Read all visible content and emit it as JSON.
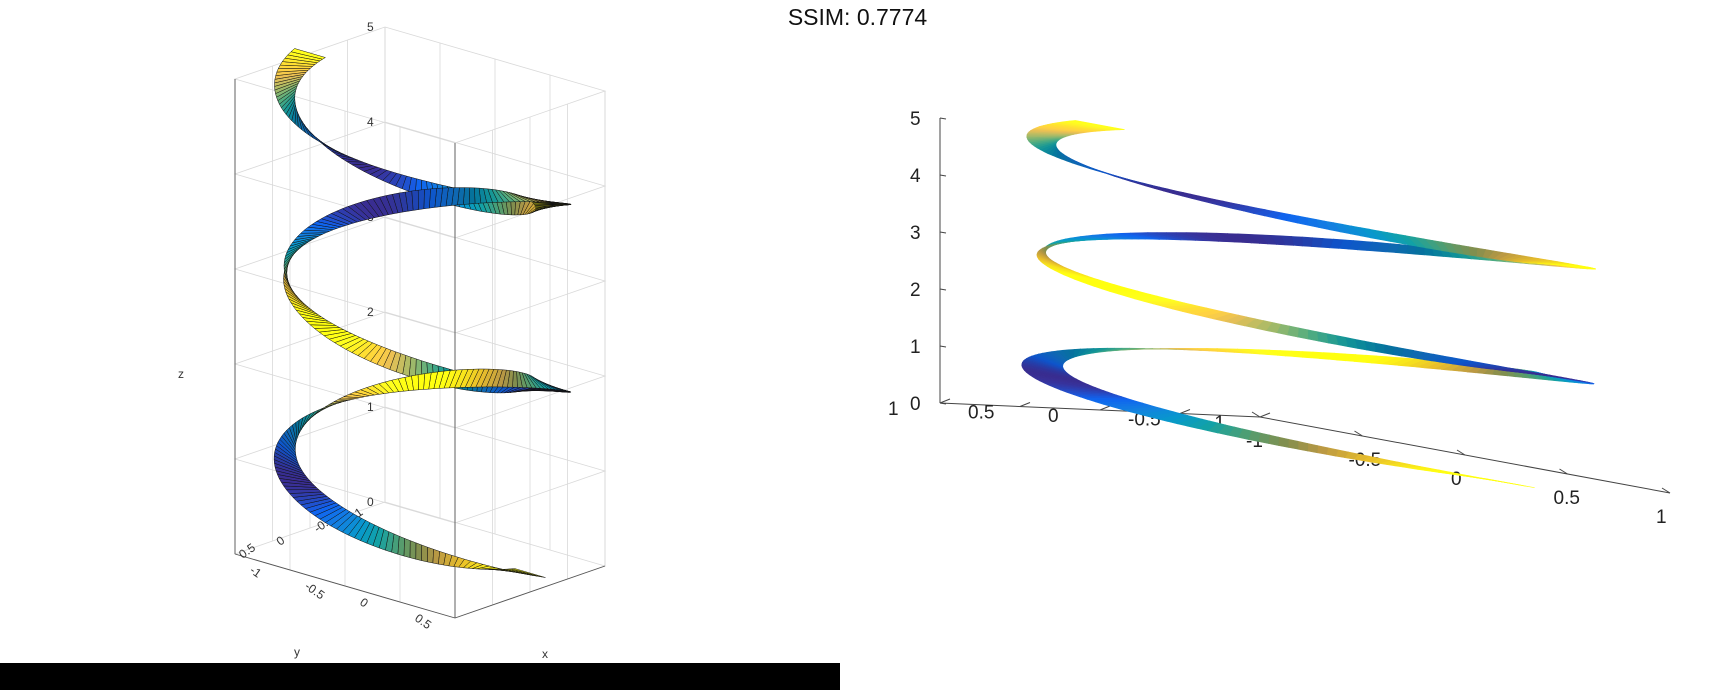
{
  "title": "SSIM: 0.7774",
  "chart_data": [
    {
      "type": "surface",
      "panel": "left",
      "description_axes": {
        "xlabel": "x",
        "ylabel": "y",
        "zlabel": "z"
      },
      "xlim": [
        -1,
        1
      ],
      "ylim": [
        -1,
        1
      ],
      "zlim": [
        0,
        5
      ],
      "z_ticks": [
        "0",
        "1",
        "2",
        "3",
        "4",
        "5"
      ],
      "y_ticks": [
        "-1",
        "-0.5",
        "0",
        "0.5"
      ],
      "x_ticks": [
        "-1",
        "-0.5",
        "0",
        "0.5"
      ],
      "grid": true,
      "edges": "black mesh lines visible",
      "colormap": "parula",
      "shape": "twisted ribbon helix, 2.5 turns, z from 0.2 to 5"
    },
    {
      "type": "surface",
      "panel": "right",
      "xlim": [
        -1,
        1
      ],
      "ylim": [
        -1,
        1
      ],
      "zlim": [
        0,
        5
      ],
      "z_ticks": [
        "0",
        "1",
        "2",
        "3",
        "4",
        "5"
      ],
      "y_ticks": [
        "1",
        "0.5",
        "0",
        "-0.5",
        "-1"
      ],
      "x_ticks": [
        "-1",
        "-0.5",
        "0",
        "0.5",
        "1"
      ],
      "grid": false,
      "edges": "none, interpolated shading",
      "colormap": "parula",
      "shape": "twisted ribbon helix, 2.5 turns, z from 0 to 5"
    }
  ],
  "colors": {
    "parula_dark": "#352a87",
    "parula_blue": "#2c7ad6",
    "parula_teal": "#1aa5a0",
    "parula_green": "#7fc068",
    "parula_orange": "#e0a13a",
    "parula_yellow": "#f9fb0e"
  }
}
